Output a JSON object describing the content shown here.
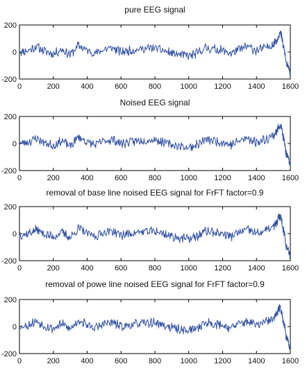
{
  "style": {
    "line_color": "#2f4fa3",
    "axis_color": "#000000",
    "background": "#ffffff"
  },
  "chart_data": [
    {
      "type": "line",
      "title": "pure EEG signal",
      "xlim": [
        0,
        1600
      ],
      "ylim": [
        -200,
        200
      ],
      "xticks": [
        "0",
        "200",
        "400",
        "600",
        "800",
        "1000",
        "1200",
        "1400",
        "1600"
      ],
      "yticks": [
        "200",
        "0",
        "-200"
      ],
      "grid": false,
      "series": [
        {
          "seed": 11,
          "x": [
            0,
            50,
            100,
            150,
            200,
            250,
            300,
            350,
            400,
            450,
            500,
            550,
            600,
            650,
            700,
            750,
            800,
            850,
            900,
            950,
            1000,
            1050,
            1100,
            1150,
            1200,
            1250,
            1300,
            1350,
            1400,
            1450,
            1500,
            1520,
            1540,
            1560,
            1580,
            1600
          ],
          "y": [
            0,
            10,
            40,
            5,
            -15,
            20,
            -20,
            50,
            10,
            -10,
            20,
            30,
            0,
            10,
            20,
            25,
            30,
            10,
            -10,
            -20,
            -30,
            -10,
            30,
            20,
            10,
            -10,
            20,
            40,
            10,
            30,
            60,
            90,
            150,
            40,
            -100,
            -150
          ]
        }
      ]
    },
    {
      "type": "line",
      "title": "Noised EEG signal",
      "xlim": [
        0,
        1600
      ],
      "ylim": [
        -200,
        200
      ],
      "xticks": [
        "0",
        "200",
        "400",
        "600",
        "800",
        "1000",
        "1200",
        "1400",
        "1600"
      ],
      "yticks": [
        "200",
        "0",
        "-200"
      ],
      "grid": false,
      "series": [
        {
          "seed": 23,
          "x": [
            0,
            50,
            100,
            150,
            200,
            250,
            300,
            350,
            400,
            450,
            500,
            550,
            600,
            650,
            700,
            750,
            800,
            850,
            900,
            950,
            1000,
            1050,
            1100,
            1150,
            1200,
            1250,
            1300,
            1350,
            1400,
            1450,
            1500,
            1520,
            1540,
            1560,
            1580,
            1600
          ],
          "y": [
            0,
            10,
            40,
            5,
            -15,
            20,
            -20,
            50,
            10,
            -10,
            20,
            30,
            0,
            10,
            20,
            25,
            30,
            10,
            -10,
            -20,
            -30,
            -10,
            30,
            20,
            10,
            -10,
            20,
            40,
            10,
            30,
            60,
            90,
            150,
            40,
            -100,
            -150
          ]
        }
      ]
    },
    {
      "type": "line",
      "title": "removal  of base line noised EEG signal for FrFT factor=0.9",
      "xlim": [
        0,
        1600
      ],
      "ylim": [
        -200,
        200
      ],
      "xticks": [
        "0",
        "200",
        "400",
        "600",
        "800",
        "1000",
        "1200",
        "1400",
        "1600"
      ],
      "yticks": [
        "200",
        "0",
        "-200"
      ],
      "grid": false,
      "series": [
        {
          "seed": 37,
          "x": [
            0,
            50,
            100,
            150,
            200,
            250,
            300,
            350,
            400,
            450,
            500,
            550,
            600,
            650,
            700,
            750,
            800,
            850,
            900,
            950,
            1000,
            1050,
            1100,
            1150,
            1200,
            1250,
            1300,
            1350,
            1400,
            1450,
            1500,
            1520,
            1540,
            1560,
            1580,
            1600
          ],
          "y": [
            -10,
            0,
            30,
            -5,
            -25,
            10,
            -30,
            40,
            0,
            -20,
            10,
            20,
            -10,
            0,
            10,
            15,
            20,
            0,
            -20,
            -30,
            -40,
            -20,
            20,
            10,
            0,
            -20,
            10,
            30,
            0,
            20,
            50,
            80,
            140,
            30,
            -110,
            -160
          ]
        }
      ]
    },
    {
      "type": "line",
      "title": "removal  of powe line noised EEG signal for FrFT factor=0.9",
      "xlim": [
        0,
        1600
      ],
      "ylim": [
        -200,
        200
      ],
      "xticks": [
        "0",
        "200",
        "400",
        "600",
        "800",
        "1000",
        "1200",
        "1400",
        "1600"
      ],
      "yticks": [
        "200",
        "0",
        "-200"
      ],
      "grid": false,
      "series": [
        {
          "seed": 53,
          "x": [
            0,
            50,
            100,
            150,
            200,
            250,
            300,
            350,
            400,
            450,
            500,
            550,
            600,
            650,
            700,
            750,
            800,
            850,
            900,
            950,
            1000,
            1050,
            1100,
            1150,
            1200,
            1250,
            1300,
            1350,
            1400,
            1450,
            1500,
            1520,
            1540,
            1560,
            1580,
            1600
          ],
          "y": [
            0,
            10,
            40,
            5,
            -15,
            20,
            -20,
            50,
            10,
            -10,
            20,
            30,
            0,
            10,
            20,
            25,
            30,
            10,
            -10,
            -20,
            -30,
            -10,
            30,
            20,
            10,
            -10,
            20,
            40,
            10,
            30,
            60,
            90,
            150,
            40,
            -100,
            -150
          ]
        }
      ]
    }
  ]
}
